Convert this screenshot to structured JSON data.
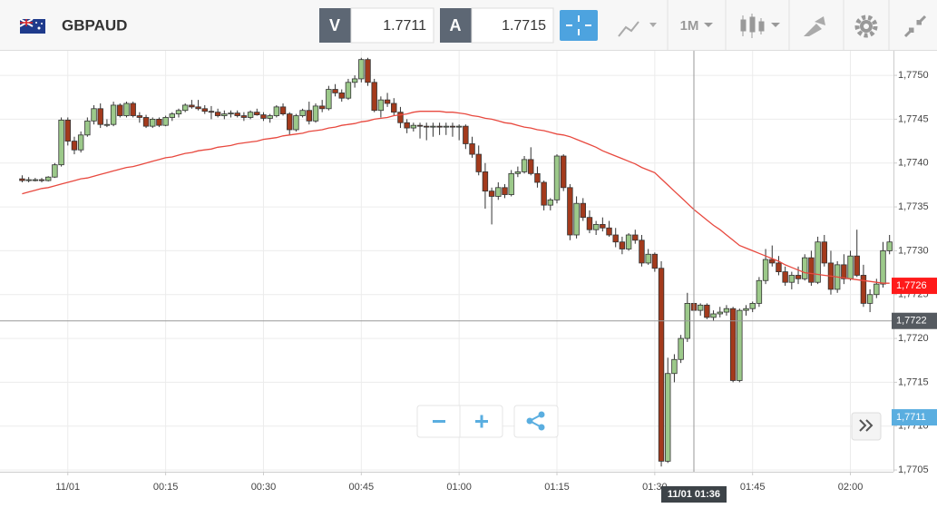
{
  "toolbar": {
    "symbol": "GBPAUD",
    "bid_label": "V",
    "bid": 1.7711,
    "ask_label": "A",
    "ask": 1.7715,
    "timeframe": "1M"
  },
  "chart_data": {
    "type": "candlestick",
    "up_color": "#9cc98a",
    "down_color": "#a33a1c",
    "x": [
      -7,
      -6,
      -5,
      -4,
      -3,
      -2,
      -1,
      0,
      1,
      2,
      3,
      4,
      5,
      6,
      7,
      8,
      9,
      10,
      11,
      12,
      13,
      14,
      15,
      16,
      17,
      18,
      19,
      20,
      21,
      22,
      23,
      24,
      25,
      26,
      27,
      28,
      29,
      30,
      31,
      32,
      33,
      34,
      35,
      36,
      37,
      38,
      39,
      40,
      41,
      42,
      43,
      44,
      45,
      46,
      47,
      48,
      49,
      50,
      51,
      52,
      53,
      54,
      55,
      56,
      57,
      58,
      59,
      60,
      61,
      62,
      63,
      64,
      65,
      66,
      67,
      68,
      69,
      70,
      71,
      72,
      73,
      74,
      75,
      76,
      77,
      78,
      79,
      80,
      81,
      82,
      83,
      84,
      85,
      86,
      87,
      88,
      89,
      90,
      91,
      92,
      93,
      94,
      95,
      96,
      97,
      98,
      99,
      100,
      101,
      102,
      103,
      104,
      105,
      106,
      107,
      108,
      109,
      110,
      111,
      112,
      113,
      114,
      115,
      116,
      117,
      118,
      119,
      120,
      121,
      122,
      123,
      124,
      125,
      126
    ],
    "ohlc": [
      [
        1.77382,
        1.77386,
        1.77378,
        1.7738
      ],
      [
        1.7738,
        1.77384,
        1.77378,
        1.77381
      ],
      [
        1.77381,
        1.77383,
        1.77379,
        1.77381
      ],
      [
        1.77381,
        1.77383,
        1.77378,
        1.7738
      ],
      [
        1.7738,
        1.77385,
        1.77379,
        1.77384
      ],
      [
        1.77384,
        1.774,
        1.77383,
        1.77398
      ],
      [
        1.77398,
        1.77452,
        1.77396,
        1.77449
      ],
      [
        1.77449,
        1.77452,
        1.7742,
        1.77425
      ],
      [
        1.77425,
        1.7743,
        1.7741,
        1.77415
      ],
      [
        1.77415,
        1.77436,
        1.77412,
        1.77432
      ],
      [
        1.77432,
        1.77452,
        1.7743,
        1.77448
      ],
      [
        1.77448,
        1.77466,
        1.77444,
        1.77462
      ],
      [
        1.77462,
        1.77468,
        1.7744,
        1.77444
      ],
      [
        1.77444,
        1.7745,
        1.77441,
        1.77444
      ],
      [
        1.77444,
        1.7747,
        1.77442,
        1.77466
      ],
      [
        1.77466,
        1.77468,
        1.77452,
        1.77454
      ],
      [
        1.77454,
        1.7747,
        1.77452,
        1.77468
      ],
      [
        1.77468,
        1.7747,
        1.77452,
        1.77454
      ],
      [
        1.77454,
        1.77458,
        1.77446,
        1.77452
      ],
      [
        1.77452,
        1.77455,
        1.7744,
        1.77442
      ],
      [
        1.77442,
        1.77452,
        1.7744,
        1.7745
      ],
      [
        1.7745,
        1.77452,
        1.77441,
        1.77443
      ],
      [
        1.77443,
        1.77454,
        1.77442,
        1.77452
      ],
      [
        1.77452,
        1.77458,
        1.77448,
        1.77456
      ],
      [
        1.77456,
        1.77462,
        1.77452,
        1.7746
      ],
      [
        1.7746,
        1.77468,
        1.77458,
        1.77466
      ],
      [
        1.77466,
        1.77472,
        1.77462,
        1.77464
      ],
      [
        1.77464,
        1.77472,
        1.7746,
        1.77462
      ],
      [
        1.77462,
        1.77466,
        1.77456,
        1.77459
      ],
      [
        1.77459,
        1.77465,
        1.7745,
        1.77458
      ],
      [
        1.77458,
        1.77462,
        1.77452,
        1.77454
      ],
      [
        1.77454,
        1.7746,
        1.7745,
        1.77456
      ],
      [
        1.77456,
        1.7746,
        1.77452,
        1.77457
      ],
      [
        1.77457,
        1.7746,
        1.77452,
        1.77454
      ],
      [
        1.77454,
        1.77458,
        1.77448,
        1.77452
      ],
      [
        1.77452,
        1.7746,
        1.7745,
        1.77458
      ],
      [
        1.77458,
        1.77462,
        1.77454,
        1.77455
      ],
      [
        1.77455,
        1.77458,
        1.77448,
        1.77451
      ],
      [
        1.77451,
        1.77456,
        1.77446,
        1.77454
      ],
      [
        1.77454,
        1.77466,
        1.77452,
        1.77464
      ],
      [
        1.77464,
        1.77468,
        1.77454,
        1.77456
      ],
      [
        1.77456,
        1.77458,
        1.77432,
        1.77438
      ],
      [
        1.77438,
        1.77456,
        1.77436,
        1.77454
      ],
      [
        1.77454,
        1.77462,
        1.77452,
        1.7746
      ],
      [
        1.7746,
        1.7747,
        1.77444,
        1.77448
      ],
      [
        1.77448,
        1.77468,
        1.77446,
        1.77465
      ],
      [
        1.77465,
        1.77472,
        1.77458,
        1.77462
      ],
      [
        1.77462,
        1.77488,
        1.7746,
        1.77484
      ],
      [
        1.77484,
        1.7749,
        1.77476,
        1.7748
      ],
      [
        1.7748,
        1.77484,
        1.7747,
        1.77474
      ],
      [
        1.77474,
        1.77496,
        1.77472,
        1.77492
      ],
      [
        1.77492,
        1.775,
        1.77486,
        1.77496
      ],
      [
        1.77496,
        1.7752,
        1.77492,
        1.77518
      ],
      [
        1.77518,
        1.7752,
        1.77488,
        1.77492
      ],
      [
        1.77492,
        1.77496,
        1.77458,
        1.7746
      ],
      [
        1.7746,
        1.77476,
        1.77452,
        1.77472
      ],
      [
        1.77472,
        1.7748,
        1.77464,
        1.77468
      ],
      [
        1.77468,
        1.77474,
        1.77454,
        1.77458
      ],
      [
        1.77458,
        1.77464,
        1.7744,
        1.77446
      ],
      [
        1.77446,
        1.7745,
        1.77434,
        1.7744
      ],
      [
        1.7744,
        1.77446,
        1.77436,
        1.77443
      ],
      [
        1.77443,
        1.77446,
        1.77428,
        1.77442
      ],
      [
        1.77442,
        1.77446,
        1.77426,
        1.77441
      ],
      [
        1.77441,
        1.77446,
        1.7743,
        1.77442
      ],
      [
        1.77442,
        1.77446,
        1.77432,
        1.77441
      ],
      [
        1.77441,
        1.77446,
        1.77432,
        1.77442
      ],
      [
        1.77442,
        1.77446,
        1.7743,
        1.77441
      ],
      [
        1.77441,
        1.77444,
        1.77426,
        1.77442
      ],
      [
        1.77442,
        1.77444,
        1.77416,
        1.77422
      ],
      [
        1.77422,
        1.7743,
        1.77406,
        1.7741
      ],
      [
        1.7741,
        1.7742,
        1.77386,
        1.7739
      ],
      [
        1.7739,
        1.774,
        1.77348,
        1.77368
      ],
      [
        1.77368,
        1.77372,
        1.7733,
        1.77362
      ],
      [
        1.77362,
        1.77378,
        1.77358,
        1.77372
      ],
      [
        1.77372,
        1.77376,
        1.7736,
        1.77364
      ],
      [
        1.77364,
        1.77392,
        1.77362,
        1.77388
      ],
      [
        1.77388,
        1.77396,
        1.77384,
        1.7739
      ],
      [
        1.7739,
        1.77408,
        1.77388,
        1.77404
      ],
      [
        1.77404,
        1.77418,
        1.77386,
        1.77388
      ],
      [
        1.77388,
        1.77396,
        1.77372,
        1.77378
      ],
      [
        1.77378,
        1.7738,
        1.77346,
        1.77352
      ],
      [
        1.77352,
        1.7736,
        1.77346,
        1.77358
      ],
      [
        1.77358,
        1.7741,
        1.77354,
        1.77408
      ],
      [
        1.77408,
        1.7741,
        1.77368,
        1.77372
      ],
      [
        1.77372,
        1.77376,
        1.77312,
        1.77318
      ],
      [
        1.77318,
        1.77362,
        1.77314,
        1.77354
      ],
      [
        1.77354,
        1.7736,
        1.77334,
        1.77338
      ],
      [
        1.77338,
        1.77346,
        1.7732,
        1.77324
      ],
      [
        1.77324,
        1.77334,
        1.77318,
        1.7733
      ],
      [
        1.7733,
        1.77338,
        1.77322,
        1.77326
      ],
      [
        1.77326,
        1.77334,
        1.77316,
        1.77318
      ],
      [
        1.77318,
        1.77326,
        1.77304,
        1.7731
      ],
      [
        1.7731,
        1.77316,
        1.77296,
        1.77302
      ],
      [
        1.77302,
        1.7732,
        1.773,
        1.77318
      ],
      [
        1.77318,
        1.77324,
        1.77308,
        1.77312
      ],
      [
        1.77312,
        1.77318,
        1.77282,
        1.77286
      ],
      [
        1.77286,
        1.77302,
        1.77284,
        1.77296
      ],
      [
        1.77296,
        1.77298,
        1.77276,
        1.7728
      ],
      [
        1.7728,
        1.77288,
        1.77054,
        1.7706
      ],
      [
        1.7706,
        1.77178,
        1.77058,
        1.7716
      ],
      [
        1.7716,
        1.77182,
        1.7715,
        1.77176
      ],
      [
        1.77176,
        1.77204,
        1.77172,
        1.772
      ],
      [
        1.772,
        1.77252,
        1.77196,
        1.7724
      ],
      [
        1.7724,
        1.77246,
        1.77228,
        1.77232
      ],
      [
        1.77232,
        1.7724,
        1.77226,
        1.77238
      ],
      [
        1.77238,
        1.7724,
        1.77222,
        1.77224
      ],
      [
        1.77224,
        1.77232,
        1.7722,
        1.77228
      ],
      [
        1.77228,
        1.77236,
        1.77224,
        1.7723
      ],
      [
        1.7723,
        1.77238,
        1.77226,
        1.77234
      ],
      [
        1.77234,
        1.77236,
        1.7715,
        1.77152
      ],
      [
        1.77152,
        1.77234,
        1.7715,
        1.77232
      ],
      [
        1.77232,
        1.77238,
        1.77226,
        1.77234
      ],
      [
        1.77234,
        1.77242,
        1.7723,
        1.7724
      ],
      [
        1.7724,
        1.7727,
        1.77236,
        1.77266
      ],
      [
        1.77266,
        1.77302,
        1.77262,
        1.7729
      ],
      [
        1.7729,
        1.77306,
        1.77282,
        1.77286
      ],
      [
        1.77286,
        1.77294,
        1.77272,
        1.77276
      ],
      [
        1.77276,
        1.77282,
        1.7726,
        1.77264
      ],
      [
        1.77264,
        1.77276,
        1.77256,
        1.77272
      ],
      [
        1.77272,
        1.77282,
        1.77262,
        1.77268
      ],
      [
        1.77268,
        1.77296,
        1.77266,
        1.77292
      ],
      [
        1.77292,
        1.773,
        1.7726,
        1.77264
      ],
      [
        1.77264,
        1.77316,
        1.77262,
        1.7731
      ],
      [
        1.7731,
        1.77318,
        1.77282,
        1.77286
      ],
      [
        1.77286,
        1.773,
        1.7725,
        1.77256
      ],
      [
        1.77256,
        1.77288,
        1.77252,
        1.77284
      ],
      [
        1.77284,
        1.77296,
        1.77262,
        1.77268
      ],
      [
        1.77268,
        1.773,
        1.77266,
        1.77294
      ],
      [
        1.77294,
        1.77324,
        1.7727,
        1.77272
      ],
      [
        1.77272,
        1.77284,
        1.77236,
        1.7724
      ],
      [
        1.7724,
        1.77256,
        1.7723,
        1.7725
      ],
      [
        1.7725,
        1.77268,
        1.77246,
        1.77262
      ],
      [
        1.77262,
        1.7731,
        1.77258,
        1.773
      ],
      [
        1.773,
        1.77318,
        1.77296,
        1.7731
      ]
    ],
    "ma": {
      "color": "#e8493f",
      "values": [
        1.77365,
        1.77367,
        1.77369,
        1.77371,
        1.77372,
        1.77374,
        1.77376,
        1.77378,
        1.7738,
        1.77382,
        1.77383,
        1.77385,
        1.77387,
        1.77389,
        1.77391,
        1.77393,
        1.77395,
        1.77396,
        1.77398,
        1.774,
        1.77402,
        1.77404,
        1.77406,
        1.77407,
        1.77409,
        1.77411,
        1.77412,
        1.77414,
        1.77415,
        1.77416,
        1.77418,
        1.77419,
        1.7742,
        1.77422,
        1.77423,
        1.77424,
        1.77425,
        1.77427,
        1.77428,
        1.77429,
        1.77431,
        1.77432,
        1.77433,
        1.77434,
        1.77436,
        1.77437,
        1.77438,
        1.7744,
        1.77441,
        1.77443,
        1.77444,
        1.77445,
        1.77447,
        1.77448,
        1.7745,
        1.77451,
        1.77452,
        1.77454,
        1.77455,
        1.77456,
        1.77458,
        1.77459,
        1.77459,
        1.77459,
        1.77459,
        1.77458,
        1.77458,
        1.77457,
        1.77456,
        1.77454,
        1.77453,
        1.77451,
        1.7745,
        1.77448,
        1.77446,
        1.77445,
        1.77443,
        1.77441,
        1.7744,
        1.77438,
        1.77437,
        1.77435,
        1.77433,
        1.77432,
        1.7743,
        1.77427,
        1.77424,
        1.77421,
        1.77418,
        1.77414,
        1.77411,
        1.77408,
        1.77405,
        1.77402,
        1.77399,
        1.77395,
        1.77392,
        1.77389,
        1.77382,
        1.77375,
        1.77368,
        1.77361,
        1.77354,
        1.77347,
        1.77341,
        1.77335,
        1.77329,
        1.77324,
        1.77318,
        1.77312,
        1.77306,
        1.77303,
        1.773,
        1.77297,
        1.77294,
        1.77291,
        1.77288,
        1.77284,
        1.77281,
        1.77278,
        1.77275,
        1.77274,
        1.77273,
        1.77272,
        1.77271,
        1.7727,
        1.77269,
        1.77268,
        1.77267,
        1.77266,
        1.77265,
        1.77264,
        1.77263,
        1.77263
      ]
    },
    "xlim": [
      -10.4,
      126.6
    ],
    "ylim": [
      1.77048,
      1.77528
    ],
    "xticks": [
      {
        "value": 0,
        "label": "11/01"
      },
      {
        "value": 15,
        "label": "00:15"
      },
      {
        "value": 30,
        "label": "00:30"
      },
      {
        "value": 45,
        "label": "00:45"
      },
      {
        "value": 60,
        "label": "01:00"
      },
      {
        "value": 75,
        "label": "01:15"
      },
      {
        "value": 90,
        "label": "01:30"
      },
      {
        "value": 105,
        "label": "01:45"
      },
      {
        "value": 120,
        "label": "02:00"
      }
    ],
    "yticks": [
      {
        "value": 1.7705,
        "label": "1,7705"
      },
      {
        "value": 1.771,
        "label": "1,7710"
      },
      {
        "value": 1.7715,
        "label": "1,7715"
      },
      {
        "value": 1.772,
        "label": "1,7720"
      },
      {
        "value": 1.7725,
        "label": "1,7725"
      },
      {
        "value": 1.773,
        "label": "1,7730"
      },
      {
        "value": 1.7735,
        "label": "1,7735"
      },
      {
        "value": 1.774,
        "label": "1,7740"
      },
      {
        "value": 1.7745,
        "label": "1,7745"
      },
      {
        "value": 1.775,
        "label": "1,7750"
      }
    ],
    "grid": true,
    "markers": [
      {
        "value": 1.7726,
        "label": "1,7726",
        "color": "#ff1a1a"
      },
      {
        "value": 1.7711,
        "label": "1,7711",
        "color": "#5aaee0"
      }
    ],
    "crosshair": {
      "x": 96,
      "x_label": "11/01 01:36",
      "y": 1.7722,
      "y_label": "1,7722",
      "color": "#555a60"
    }
  }
}
